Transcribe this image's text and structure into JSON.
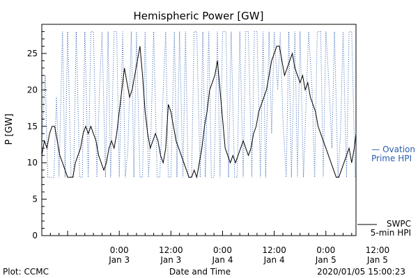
{
  "chart_data": {
    "type": "line",
    "title": "Hemispheric Power [GW]",
    "ylabel": "P [GW]",
    "xlabel": "Date and Time",
    "ylim": [
      0,
      29
    ],
    "yticks": [
      0,
      5,
      10,
      15,
      20,
      25
    ],
    "xlim_hours": [
      -9,
      27.5
    ],
    "grid": false,
    "xticks": [
      {
        "hour": 0,
        "time": "0:00",
        "date": "Jan 3"
      },
      {
        "hour": 6,
        "time": "12:00",
        "date": "Jan 3"
      },
      {
        "hour": 12,
        "time": "0:00",
        "date": "Jan 4"
      },
      {
        "hour": 18,
        "time": "12:00",
        "date": "Jan 4"
      },
      {
        "hour": 24,
        "time": "0:00",
        "date": "Jan 5"
      },
      {
        "hour": 30,
        "time": "12:00",
        "date": "Jan 5"
      }
    ],
    "series": [
      {
        "name": "Ovation Prime HPI",
        "legend": [
          "— Ovation",
          "Prime HPI"
        ],
        "style": "dotted",
        "color": "#2a5db0",
        "x": [
          -9.0,
          -8.6,
          -8.3,
          -8.0,
          -7.6,
          -7.3,
          -7.0,
          -6.6,
          -6.3,
          -6.0,
          -5.6,
          -5.3,
          -5.0,
          -4.6,
          -4.3,
          -4.0,
          -3.6,
          -3.3,
          -3.0,
          -2.6,
          -2.3,
          -2.0,
          -1.6,
          -1.3,
          -1.0,
          -0.6,
          -0.3,
          0.0,
          0.4,
          0.7,
          1.0,
          1.4,
          1.7,
          2.0,
          2.4,
          2.7,
          3.0,
          3.4,
          3.7,
          4.0,
          4.4,
          4.7,
          5.0,
          5.4,
          5.7,
          6.0,
          6.4,
          6.7,
          7.0,
          7.4,
          7.7,
          8.0,
          8.4,
          8.7,
          9.0,
          9.4,
          9.7,
          10.0,
          10.4,
          10.7,
          11.0,
          11.4,
          11.7,
          12.0,
          12.4,
          12.7,
          13.0,
          13.4,
          13.7,
          14.0,
          14.4,
          14.7,
          15.0,
          15.4,
          15.7,
          16.0,
          16.4,
          16.7,
          17.0,
          17.4,
          17.7,
          18.0,
          18.4,
          18.7,
          19.0,
          19.4,
          19.7,
          20.0,
          20.4,
          20.7,
          21.0,
          21.4,
          21.7,
          22.0,
          22.4,
          22.7,
          23.0,
          23.4,
          23.7,
          24.0,
          24.4,
          24.7,
          25.0,
          25.4,
          25.7,
          26.0,
          26.4,
          26.7,
          27.0,
          27.4
        ],
        "y": [
          13,
          22,
          8,
          8,
          8,
          19,
          8,
          28,
          8,
          28,
          8,
          8,
          28,
          8,
          8,
          28,
          8,
          28,
          28,
          8,
          20,
          28,
          8,
          28,
          8,
          28,
          28,
          8,
          28,
          8,
          12,
          28,
          8,
          28,
          8,
          8,
          28,
          8,
          15,
          28,
          8,
          8,
          17,
          28,
          8,
          8,
          28,
          8,
          28,
          8,
          28,
          8,
          8,
          28,
          28,
          8,
          28,
          8,
          28,
          8,
          8,
          28,
          8,
          28,
          28,
          8,
          28,
          8,
          8,
          28,
          8,
          28,
          28,
          8,
          28,
          28,
          8,
          28,
          8,
          28,
          14,
          28,
          20,
          28,
          16,
          8,
          28,
          8,
          28,
          8,
          28,
          8,
          18,
          28,
          20,
          8,
          28,
          28,
          8,
          28,
          20,
          12,
          28,
          8,
          14,
          28,
          8,
          28,
          28,
          8
        ],
        "y_is_estimated": true
      },
      {
        "name": "SWPC 5-min HPI",
        "legend": [
          "SWPC",
          "5-min HPI"
        ],
        "style": "solid",
        "color": "#000000",
        "x": [
          -9.0,
          -8.7,
          -8.4,
          -8.1,
          -7.8,
          -7.5,
          -7.2,
          -6.9,
          -6.6,
          -6.3,
          -6.0,
          -5.7,
          -5.4,
          -5.1,
          -4.8,
          -4.5,
          -4.2,
          -3.9,
          -3.6,
          -3.3,
          -3.0,
          -2.7,
          -2.4,
          -2.1,
          -1.8,
          -1.5,
          -1.2,
          -0.9,
          -0.6,
          -0.3,
          0.0,
          0.3,
          0.6,
          0.9,
          1.2,
          1.5,
          1.8,
          2.1,
          2.4,
          2.7,
          3.0,
          3.3,
          3.6,
          3.9,
          4.2,
          4.5,
          4.8,
          5.1,
          5.4,
          5.7,
          6.0,
          6.3,
          6.6,
          6.9,
          7.2,
          7.5,
          7.8,
          8.1,
          8.4,
          8.7,
          9.0,
          9.3,
          9.6,
          9.9,
          10.2,
          10.5,
          10.8,
          11.1,
          11.4,
          11.7,
          12.0,
          12.3,
          12.6,
          12.9,
          13.2,
          13.5,
          13.8,
          14.1,
          14.4,
          14.7,
          15.0,
          15.3,
          15.6,
          15.9,
          16.2,
          16.5,
          16.8,
          17.1,
          17.4,
          17.7,
          18.0,
          18.3,
          18.6,
          18.9,
          19.2,
          19.5,
          19.8,
          20.1,
          20.4,
          20.7,
          21.0,
          21.3,
          21.6,
          21.9,
          22.2,
          22.5,
          22.8,
          23.1,
          23.4,
          23.7,
          24.0,
          24.3,
          24.6,
          24.9,
          25.2,
          25.5,
          25.8,
          26.1,
          26.4,
          26.7,
          27.0,
          27.3,
          27.5
        ],
        "y": [
          11,
          13,
          12,
          14,
          15,
          15,
          13,
          11,
          10,
          9,
          8,
          8,
          8,
          10,
          11,
          12,
          14,
          15,
          14,
          15,
          14,
          13,
          11,
          10,
          9,
          10,
          12,
          13,
          12,
          14,
          17,
          20,
          23,
          21,
          19,
          20,
          22,
          24,
          26,
          22,
          17,
          14,
          12,
          13,
          14,
          13,
          11,
          10,
          12,
          18,
          17,
          15,
          13,
          12,
          11,
          10,
          9,
          8,
          8,
          9,
          8,
          10,
          12,
          15,
          17,
          20,
          21,
          22,
          24,
          20,
          16,
          12,
          11,
          10,
          11,
          10,
          11,
          12,
          13,
          12,
          11,
          12,
          14,
          15,
          17,
          18,
          19,
          20,
          22,
          24,
          25,
          26,
          26,
          24,
          22,
          23,
          24,
          25,
          23,
          22,
          21,
          22,
          20,
          21,
          19,
          18,
          17,
          15,
          14,
          13,
          12,
          11,
          10,
          9,
          8,
          8,
          9,
          10,
          11,
          12,
          10,
          12,
          14
        ],
        "y_is_estimated": true
      }
    ]
  },
  "footer": {
    "plot_label": "Plot: CCMC",
    "timestamp": "2020/01/05 15:00:23"
  }
}
